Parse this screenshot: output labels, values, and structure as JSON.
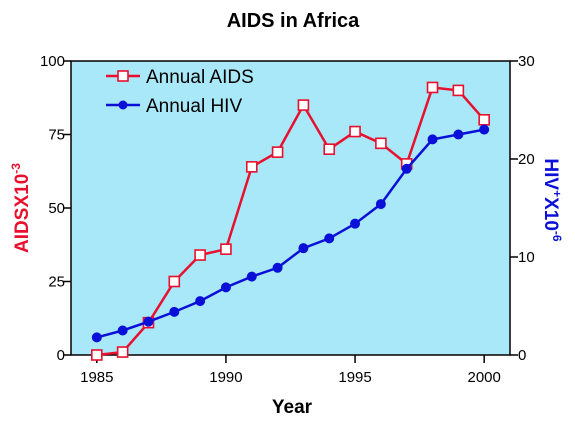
{
  "chart_data": {
    "type": "line",
    "title": "AIDS in Africa",
    "xlabel": "Year",
    "ylabel_left": {
      "base": "AIDSX10",
      "exp": "-3"
    },
    "ylabel_right": {
      "base": "HIV",
      "sup1": "+",
      "mid": "X10",
      "exp": "-6"
    },
    "xlim": [
      1984,
      2001
    ],
    "xticks": [
      1985,
      1990,
      1995,
      2000
    ],
    "ylim_left": [
      0,
      100
    ],
    "yticks_left": [
      0,
      25,
      50,
      75,
      100
    ],
    "ylim_right": [
      0,
      30
    ],
    "yticks_right": [
      0,
      10,
      20,
      30
    ],
    "grid": false,
    "legend_position": "top-left",
    "series": [
      {
        "name": "Annual AIDS",
        "axis": "left",
        "color": "#e8102e",
        "marker": "open-square",
        "x": [
          1985,
          1986,
          1987,
          1988,
          1989,
          1990,
          1991,
          1992,
          1993,
          1994,
          1995,
          1996,
          1997,
          1998,
          1999,
          2000
        ],
        "y": [
          0,
          1,
          11,
          25,
          34,
          36,
          64,
          69,
          85,
          70,
          76,
          72,
          65,
          91,
          90,
          80
        ]
      },
      {
        "name": "Annual HIV",
        "axis": "right",
        "color": "#0b10d8",
        "marker": "filled-circle",
        "x": [
          1985,
          1986,
          1987,
          1988,
          1989,
          1990,
          1991,
          1992,
          1993,
          1994,
          1995,
          1996,
          1997,
          1998,
          1999,
          2000
        ],
        "y": [
          1.8,
          2.5,
          3.4,
          4.4,
          5.5,
          6.9,
          8.0,
          8.9,
          10.9,
          11.9,
          13.4,
          15.4,
          19.0,
          22.0,
          22.5,
          23.0
        ]
      }
    ],
    "colors": {
      "plot_background": "#a8e8f8",
      "left_axis_label": "#e8102e",
      "right_axis_label": "#0b10d8"
    }
  }
}
